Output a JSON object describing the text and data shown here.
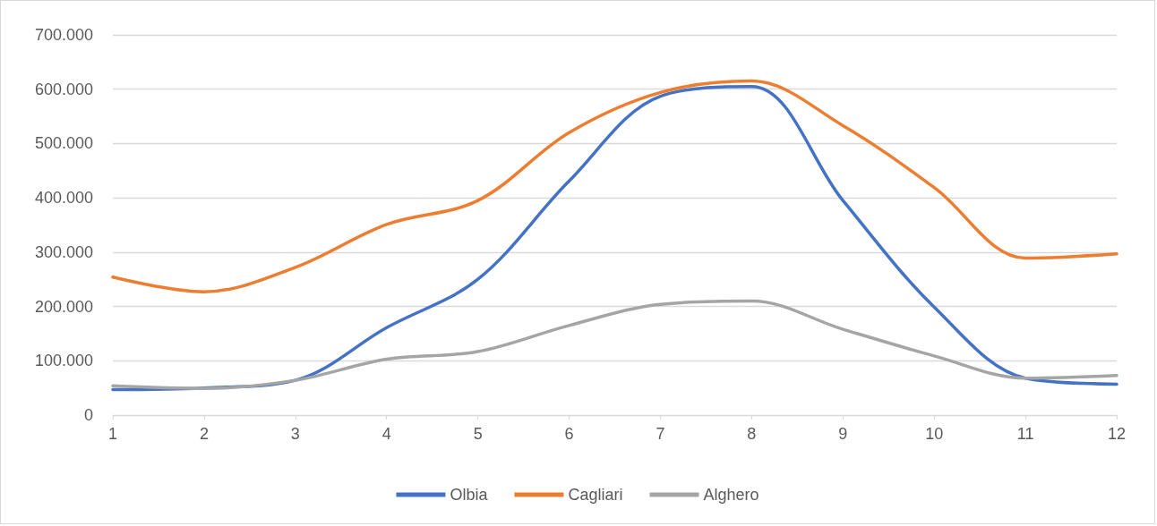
{
  "chart_data": {
    "type": "line",
    "x": [
      1,
      2,
      3,
      4,
      5,
      6,
      7,
      8,
      9,
      10,
      11,
      12
    ],
    "series": [
      {
        "name": "Olbia",
        "color": "#4472c4",
        "values": [
          47000,
          50000,
          64000,
          161000,
          250000,
          431000,
          587000,
          605000,
          395000,
          199000,
          68000,
          57000
        ]
      },
      {
        "name": "Cagliari",
        "color": "#ed7d31",
        "values": [
          254000,
          227000,
          272000,
          351000,
          395000,
          520000,
          594000,
          615000,
          533000,
          419000,
          289000,
          297000
        ]
      },
      {
        "name": "Alghero",
        "color": "#a5a5a5",
        "values": [
          54000,
          49000,
          64000,
          103000,
          117000,
          165000,
          204000,
          210000,
          158000,
          109000,
          68000,
          73000
        ]
      }
    ],
    "xlim": [
      1,
      12
    ],
    "xticks": [
      1,
      2,
      3,
      4,
      5,
      6,
      7,
      8,
      9,
      10,
      11,
      12
    ],
    "ylim": [
      0,
      700000
    ],
    "yticks": [
      0,
      {
        "value": 100000,
        "label": "100.000"
      },
      {
        "value": 200000,
        "label": "200.000"
      },
      {
        "value": 300000,
        "label": "300.000"
      },
      {
        "value": 400000,
        "label": "400.000"
      },
      {
        "value": 500000,
        "label": "500.000"
      },
      {
        "value": 600000,
        "label": "600.000"
      },
      {
        "value": 700000,
        "label": "700.000"
      }
    ],
    "grid": "y",
    "legend": "bottom",
    "marker": "none",
    "line_style": "solid"
  }
}
